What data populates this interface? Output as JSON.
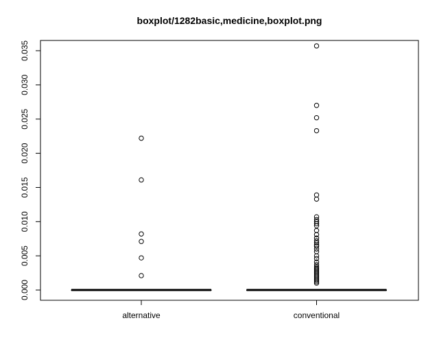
{
  "chart_data": {
    "type": "boxplot",
    "title": "boxplot/1282basic,medicine,boxplot.png",
    "xlabel": "",
    "ylabel": "",
    "ylim": [
      -0.0015,
      0.0365
    ],
    "yticks": [
      0.0,
      0.005,
      0.01,
      0.015,
      0.02,
      0.025,
      0.03,
      0.035
    ],
    "ytick_labels": [
      "0.000",
      "0.005",
      "0.010",
      "0.015",
      "0.020",
      "0.025",
      "0.030",
      "0.035"
    ],
    "categories": [
      "alternative",
      "conventional"
    ],
    "boxes": [
      {
        "name": "alternative",
        "median": 0.0,
        "q1": 0.0,
        "q3": 0.0,
        "whisker_low": 0.0,
        "whisker_high": 0.0,
        "outliers": [
          0.0222,
          0.0161,
          0.0082,
          0.0071,
          0.0047,
          0.0021
        ]
      },
      {
        "name": "conventional",
        "median": 0.0,
        "q1": 0.0,
        "q3": 0.0,
        "whisker_low": 0.0,
        "whisker_high": 0.0,
        "outliers": [
          0.0357,
          0.027,
          0.0252,
          0.0233,
          0.0139,
          0.0133,
          0.0107,
          0.0103,
          0.01,
          0.0097,
          0.0094,
          0.0087,
          0.0081,
          0.0076,
          0.0072,
          0.0069,
          0.0066,
          0.0064,
          0.006,
          0.0056,
          0.005,
          0.0046,
          0.0041,
          0.0037,
          0.0034,
          0.0032,
          0.003,
          0.0028,
          0.0026,
          0.0024,
          0.0022,
          0.002,
          0.0018,
          0.0016,
          0.0014,
          0.0012,
          0.001
        ]
      }
    ]
  }
}
